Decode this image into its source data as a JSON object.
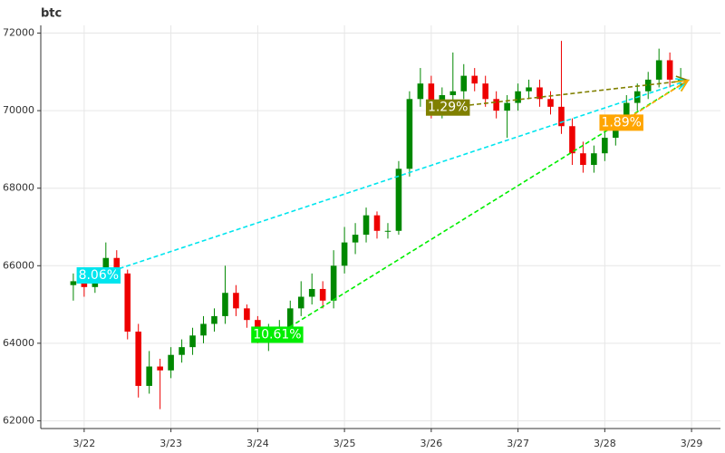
{
  "chart_data": {
    "type": "candlestick",
    "title": "btc",
    "x": [
      -3,
      0,
      3,
      6,
      9,
      12,
      15,
      18,
      21,
      24,
      27,
      30,
      33,
      36,
      39,
      42,
      45,
      48,
      51,
      54,
      57,
      60,
      63,
      66,
      69,
      72,
      75,
      78,
      81,
      84,
      87,
      90,
      93,
      96,
      99,
      102,
      105,
      108,
      111,
      114,
      117,
      120,
      123,
      126,
      129,
      132,
      135,
      138,
      141,
      144,
      147,
      150,
      153,
      156,
      159,
      162,
      165
    ],
    "open": [
      65500,
      65600,
      65450,
      65700,
      66200,
      65800,
      64300,
      62900,
      63400,
      63300,
      63700,
      63900,
      64200,
      64500,
      64700,
      65300,
      64900,
      64600,
      64200,
      64300,
      64400,
      64900,
      65200,
      65400,
      65100,
      66000,
      66600,
      66800,
      67300,
      66900,
      66900,
      68500,
      70300,
      70700,
      70000,
      70400,
      70500,
      70900,
      70700,
      70300,
      70000,
      70200,
      70500,
      70600,
      70300,
      70100,
      69600,
      68900,
      68600,
      68900,
      69300,
      69700,
      70200,
      70500,
      70800,
      71300,
      70800
    ],
    "high": [
      65800,
      65750,
      65850,
      66600,
      66400,
      65900,
      64500,
      63800,
      63600,
      63900,
      64100,
      64400,
      64700,
      64900,
      66000,
      65500,
      65000,
      64700,
      64500,
      64600,
      65100,
      65600,
      65800,
      65600,
      66400,
      67000,
      67100,
      67500,
      67400,
      67100,
      68700,
      70500,
      71100,
      70900,
      70600,
      71500,
      71200,
      71100,
      70900,
      70500,
      70400,
      70700,
      70800,
      70800,
      70500,
      71800,
      69800,
      69200,
      69100,
      69500,
      69900,
      70400,
      70700,
      71000,
      71600,
      71500,
      71100
    ],
    "low": [
      65100,
      65200,
      65300,
      65600,
      65600,
      64100,
      62600,
      62700,
      62300,
      63100,
      63500,
      63700,
      64000,
      64300,
      64500,
      64700,
      64400,
      64000,
      63800,
      64100,
      64200,
      64700,
      65000,
      64900,
      64900,
      65800,
      66300,
      66600,
      66700,
      66700,
      66800,
      68300,
      70100,
      69800,
      69800,
      70200,
      70300,
      70500,
      70100,
      69800,
      69300,
      70000,
      70300,
      70100,
      69900,
      69400,
      68600,
      68400,
      68400,
      68700,
      69100,
      69500,
      70000,
      70300,
      70600,
      70600,
      70600
    ],
    "close": [
      65600,
      65450,
      65700,
      66200,
      65800,
      64300,
      62900,
      63400,
      63300,
      63700,
      63900,
      64200,
      64500,
      64700,
      65300,
      64900,
      64600,
      64200,
      64300,
      64400,
      64900,
      65200,
      65400,
      65100,
      66000,
      66600,
      66800,
      67300,
      66900,
      66900,
      68500,
      70300,
      70700,
      70000,
      70400,
      70500,
      70900,
      70700,
      70300,
      70000,
      70200,
      70500,
      70600,
      70300,
      70100,
      69600,
      68900,
      68600,
      68900,
      69300,
      69700,
      70200,
      70500,
      70800,
      71300,
      70800,
      70800
    ],
    "up_color": "#008800",
    "down_color": "#ee0000",
    "xlim": [
      -12,
      176
    ],
    "ylim": [
      61800,
      72200
    ],
    "xticks": [
      {
        "value": 0,
        "label": "3/22"
      },
      {
        "value": 24,
        "label": "3/23"
      },
      {
        "value": 48,
        "label": "3/24"
      },
      {
        "value": 72,
        "label": "3/25"
      },
      {
        "value": 96,
        "label": "3/26"
      },
      {
        "value": 120,
        "label": "3/27"
      },
      {
        "value": 144,
        "label": "3/28"
      },
      {
        "value": 168,
        "label": "3/29"
      }
    ],
    "yticks": [
      62000,
      64000,
      66000,
      68000,
      70000,
      72000
    ],
    "grid": true,
    "annotations": [
      {
        "label": "8.06%",
        "color": "#00e5ee",
        "x": [
          4,
          167
        ],
        "y": [
          65750,
          70780
        ]
      },
      {
        "label": "10.61%",
        "color": "#00ee00",
        "x": [
          53.4,
          167
        ],
        "y": [
          64220,
          70780
        ]
      },
      {
        "label": "1.29%",
        "color": "#808000",
        "x": [
          100.6,
          167
        ],
        "y": [
          70080,
          70780
        ]
      },
      {
        "label": "1.89%",
        "color": "#ffa500",
        "x": [
          148.6,
          167
        ],
        "y": [
          69690,
          70780
        ]
      }
    ]
  }
}
